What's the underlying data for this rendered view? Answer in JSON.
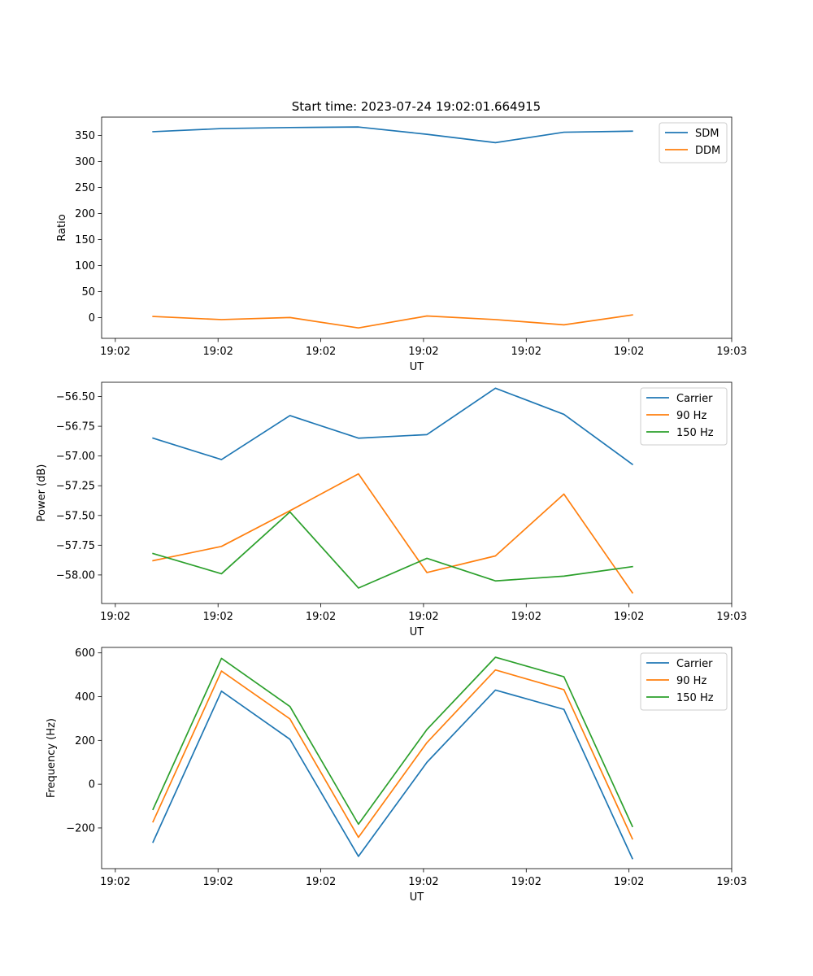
{
  "figure": {
    "title": "Start time: 2023-07-24 19:02:01.664915"
  },
  "chart_data": [
    {
      "type": "line",
      "xlabel": "UT",
      "ylabel": "Ratio",
      "x": [
        1,
        2,
        3,
        4,
        5,
        6,
        7,
        8
      ],
      "xlim": [
        0.25,
        9.45
      ],
      "xticks": [
        0.45,
        1.95,
        3.45,
        4.95,
        6.45,
        7.95,
        9.45
      ],
      "xtick_labels": [
        "19:02",
        "19:02",
        "19:02",
        "19:02",
        "19:02",
        "19:02",
        "19:03"
      ],
      "ylim": [
        -40,
        385
      ],
      "yticks": [
        0,
        50,
        100,
        150,
        200,
        250,
        300,
        350
      ],
      "ytick_labels": [
        "0",
        "50",
        "100",
        "150",
        "200",
        "250",
        "300",
        "350"
      ],
      "legend_loc": "top-right",
      "series": [
        {
          "name": "SDM",
          "color": "#1f77b4",
          "values": [
            357,
            363,
            365,
            366,
            352,
            336,
            356,
            358
          ]
        },
        {
          "name": "DDM",
          "color": "#ff7f0e",
          "values": [
            2,
            -4,
            0,
            -20,
            3,
            -4,
            -14,
            5
          ]
        }
      ]
    },
    {
      "type": "line",
      "xlabel": "UT",
      "ylabel": "Power (dB)",
      "x": [
        1,
        2,
        3,
        4,
        5,
        6,
        7,
        8
      ],
      "xlim": [
        0.25,
        9.45
      ],
      "xticks": [
        0.45,
        1.95,
        3.45,
        4.95,
        6.45,
        7.95,
        9.45
      ],
      "xtick_labels": [
        "19:02",
        "19:02",
        "19:02",
        "19:02",
        "19:02",
        "19:02",
        "19:03"
      ],
      "ylim": [
        -58.24,
        -56.38
      ],
      "yticks": [
        -58.0,
        -57.75,
        -57.5,
        -57.25,
        -57.0,
        -56.75,
        -56.5
      ],
      "ytick_labels": [
        "−58.00",
        "−57.75",
        "−57.50",
        "−57.25",
        "−57.00",
        "−56.75",
        "−56.50"
      ],
      "legend_loc": "top-right",
      "series": [
        {
          "name": "Carrier",
          "color": "#1f77b4",
          "values": [
            -56.85,
            -57.03,
            -56.66,
            -56.85,
            -56.82,
            -56.43,
            -56.65,
            -57.07
          ]
        },
        {
          "name": "90 Hz",
          "color": "#ff7f0e",
          "values": [
            -57.88,
            -57.76,
            -57.46,
            -57.15,
            -57.98,
            -57.84,
            -57.32,
            -58.15
          ]
        },
        {
          "name": "150 Hz",
          "color": "#2ca02c",
          "values": [
            -57.82,
            -57.99,
            -57.47,
            -58.11,
            -57.86,
            -58.05,
            -58.01,
            -57.93
          ]
        }
      ]
    },
    {
      "type": "line",
      "xlabel": "UT",
      "ylabel": "Frequency (Hz)",
      "x": [
        1,
        2,
        3,
        4,
        5,
        6,
        7,
        8
      ],
      "xlim": [
        0.25,
        9.45
      ],
      "xticks": [
        0.45,
        1.95,
        3.45,
        4.95,
        6.45,
        7.95,
        9.45
      ],
      "xtick_labels": [
        "19:02",
        "19:02",
        "19:02",
        "19:02",
        "19:02",
        "19:02",
        "19:03"
      ],
      "ylim": [
        -386,
        625
      ],
      "yticks": [
        -200,
        0,
        200,
        400,
        600
      ],
      "ytick_labels": [
        "−200",
        "0",
        "200",
        "400",
        "600"
      ],
      "legend_loc": "top-right",
      "series": [
        {
          "name": "Carrier",
          "color": "#1f77b4",
          "values": [
            -265,
            425,
            205,
            -330,
            100,
            430,
            342,
            -340
          ]
        },
        {
          "name": "90 Hz",
          "color": "#ff7f0e",
          "values": [
            -172,
            517,
            298,
            -243,
            190,
            522,
            432,
            -250
          ]
        },
        {
          "name": "150 Hz",
          "color": "#2ca02c",
          "values": [
            -115,
            575,
            355,
            -183,
            250,
            580,
            491,
            -193
          ]
        }
      ]
    }
  ]
}
